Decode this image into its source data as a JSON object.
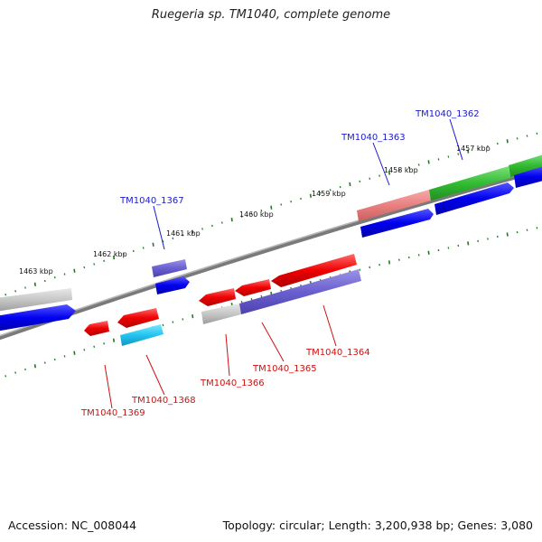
{
  "title": "Ruegeria sp. TM1040, complete genome",
  "footer": {
    "accession": "Accession: NC_008044",
    "summary": "Topology: circular; Length: 3,200,938 bp; Genes: 3,080"
  },
  "scale_labels": [
    "1457 kbp",
    "1458 kbp",
    "1459 kbp",
    "1460 kbp",
    "1461 kbp",
    "1462 kbp",
    "1463 kbp"
  ],
  "genes": [
    {
      "id": "TM1040_1362",
      "strand": "forward"
    },
    {
      "id": "TM1040_1363",
      "strand": "forward"
    },
    {
      "id": "TM1040_1367",
      "strand": "forward"
    },
    {
      "id": "TM1040_1364",
      "strand": "reverse"
    },
    {
      "id": "TM1040_1365",
      "strand": "reverse"
    },
    {
      "id": "TM1040_1366",
      "strand": "reverse"
    },
    {
      "id": "TM1040_1368",
      "strand": "reverse"
    },
    {
      "id": "TM1040_1369",
      "strand": "reverse"
    }
  ],
  "colors": {
    "forward_label": "#1a1acc",
    "reverse_label": "#cc1111",
    "genome_line": "#7a7a7a",
    "scale_tick": "#1f7a1f"
  }
}
